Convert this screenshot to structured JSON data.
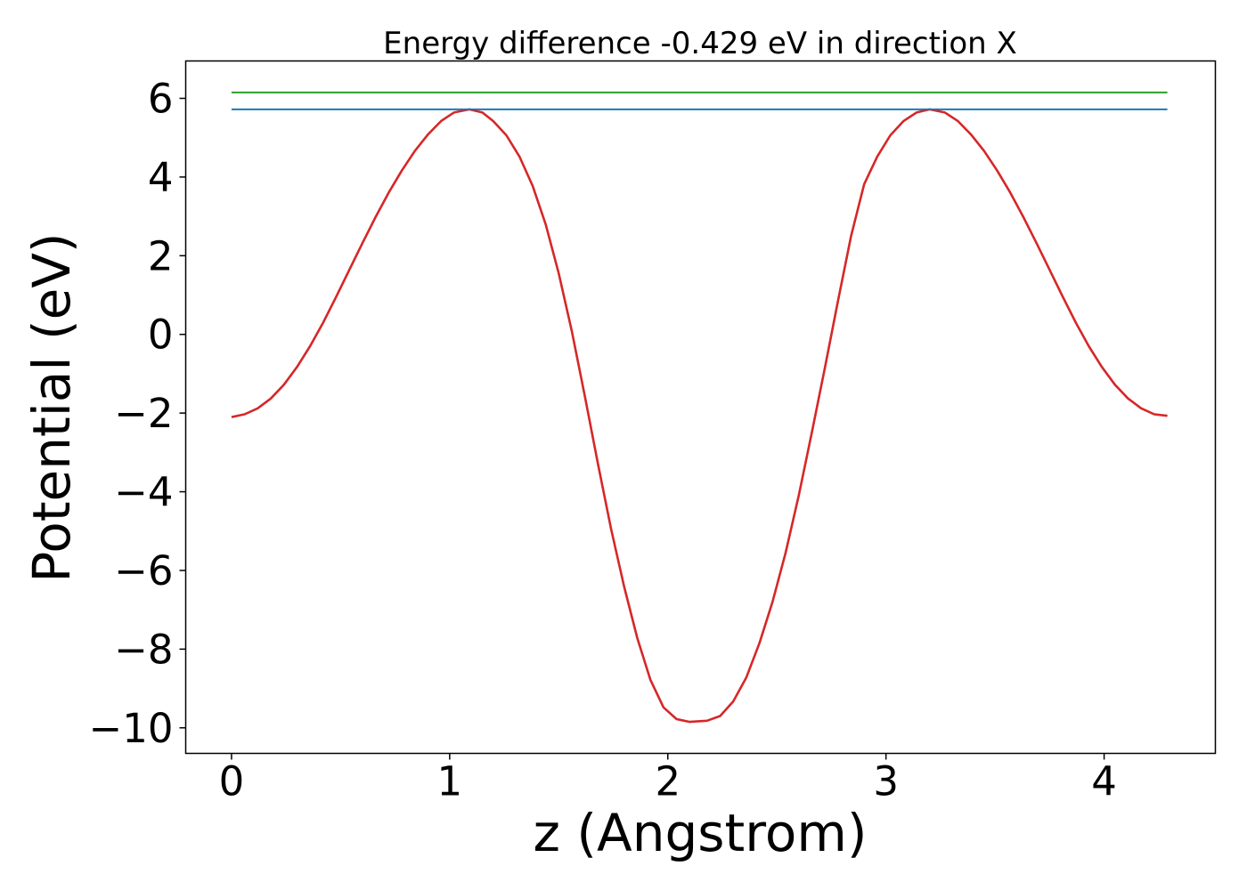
{
  "chart_data": {
    "type": "line",
    "title": "Energy difference -0.429 eV in direction X",
    "xlabel": "z (Angstrom)",
    "ylabel": "Potential (eV)",
    "xlim": [
      -0.21,
      4.51
    ],
    "ylim": [
      -10.65,
      6.95
    ],
    "xticks": [
      0,
      1,
      2,
      3,
      4
    ],
    "xtick_labels": [
      "0",
      "1",
      "2",
      "3",
      "4"
    ],
    "yticks": [
      -10,
      -8,
      -6,
      -4,
      -2,
      0,
      2,
      4,
      6
    ],
    "ytick_labels": [
      "−10",
      "−8",
      "−6",
      "−4",
      "−2",
      "0",
      "2",
      "4",
      "6"
    ],
    "grid": false,
    "legend": "none",
    "series": [
      {
        "color": "#d62728",
        "x": [
          0,
          0.06,
          0.12,
          0.18,
          0.24,
          0.3,
          0.36,
          0.42,
          0.48,
          0.54,
          0.6,
          0.66,
          0.72,
          0.78,
          0.84,
          0.9,
          0.96,
          1.02,
          1.09,
          1.15,
          1.2,
          1.26,
          1.32,
          1.38,
          1.44,
          1.5,
          1.56,
          1.62,
          1.68,
          1.74,
          1.8,
          1.86,
          1.92,
          1.98,
          2.04,
          2.1,
          2.18,
          2.24,
          2.3,
          2.36,
          2.42,
          2.48,
          2.54,
          2.6,
          2.66,
          2.72,
          2.78,
          2.84,
          2.9,
          2.96,
          3.02,
          3.08,
          3.14,
          3.2,
          3.27,
          3.33,
          3.39,
          3.45,
          3.51,
          3.57,
          3.63,
          3.69,
          3.75,
          3.81,
          3.87,
          3.93,
          3.99,
          4.05,
          4.11,
          4.17,
          4.23,
          4.29
        ],
        "y": [
          -2.1,
          -2.03,
          -1.88,
          -1.63,
          -1.28,
          -0.83,
          -0.3,
          0.3,
          0.96,
          1.64,
          2.32,
          2.98,
          3.6,
          4.16,
          4.66,
          5.08,
          5.42,
          5.64,
          5.72,
          5.64,
          5.42,
          5.06,
          4.52,
          3.78,
          2.8,
          1.55,
          0.08,
          -1.58,
          -3.3,
          -4.95,
          -6.42,
          -7.72,
          -8.78,
          -9.48,
          -9.78,
          -9.85,
          -9.82,
          -9.7,
          -9.33,
          -8.72,
          -7.85,
          -6.8,
          -5.55,
          -4.1,
          -2.5,
          -0.85,
          0.85,
          2.5,
          3.82,
          4.52,
          5.06,
          5.42,
          5.64,
          5.72,
          5.64,
          5.42,
          5.08,
          4.66,
          4.16,
          3.6,
          2.98,
          2.32,
          1.64,
          0.96,
          0.3,
          -0.3,
          -0.83,
          -1.28,
          -1.63,
          -1.88,
          -2.03,
          -2.07
        ]
      },
      {
        "color": "#1f77b4",
        "x": [
          0,
          4.29
        ],
        "y": [
          5.72,
          5.72
        ]
      },
      {
        "color": "#2ca02c",
        "x": [
          0,
          4.29
        ],
        "y": [
          6.15,
          6.15
        ]
      }
    ]
  }
}
